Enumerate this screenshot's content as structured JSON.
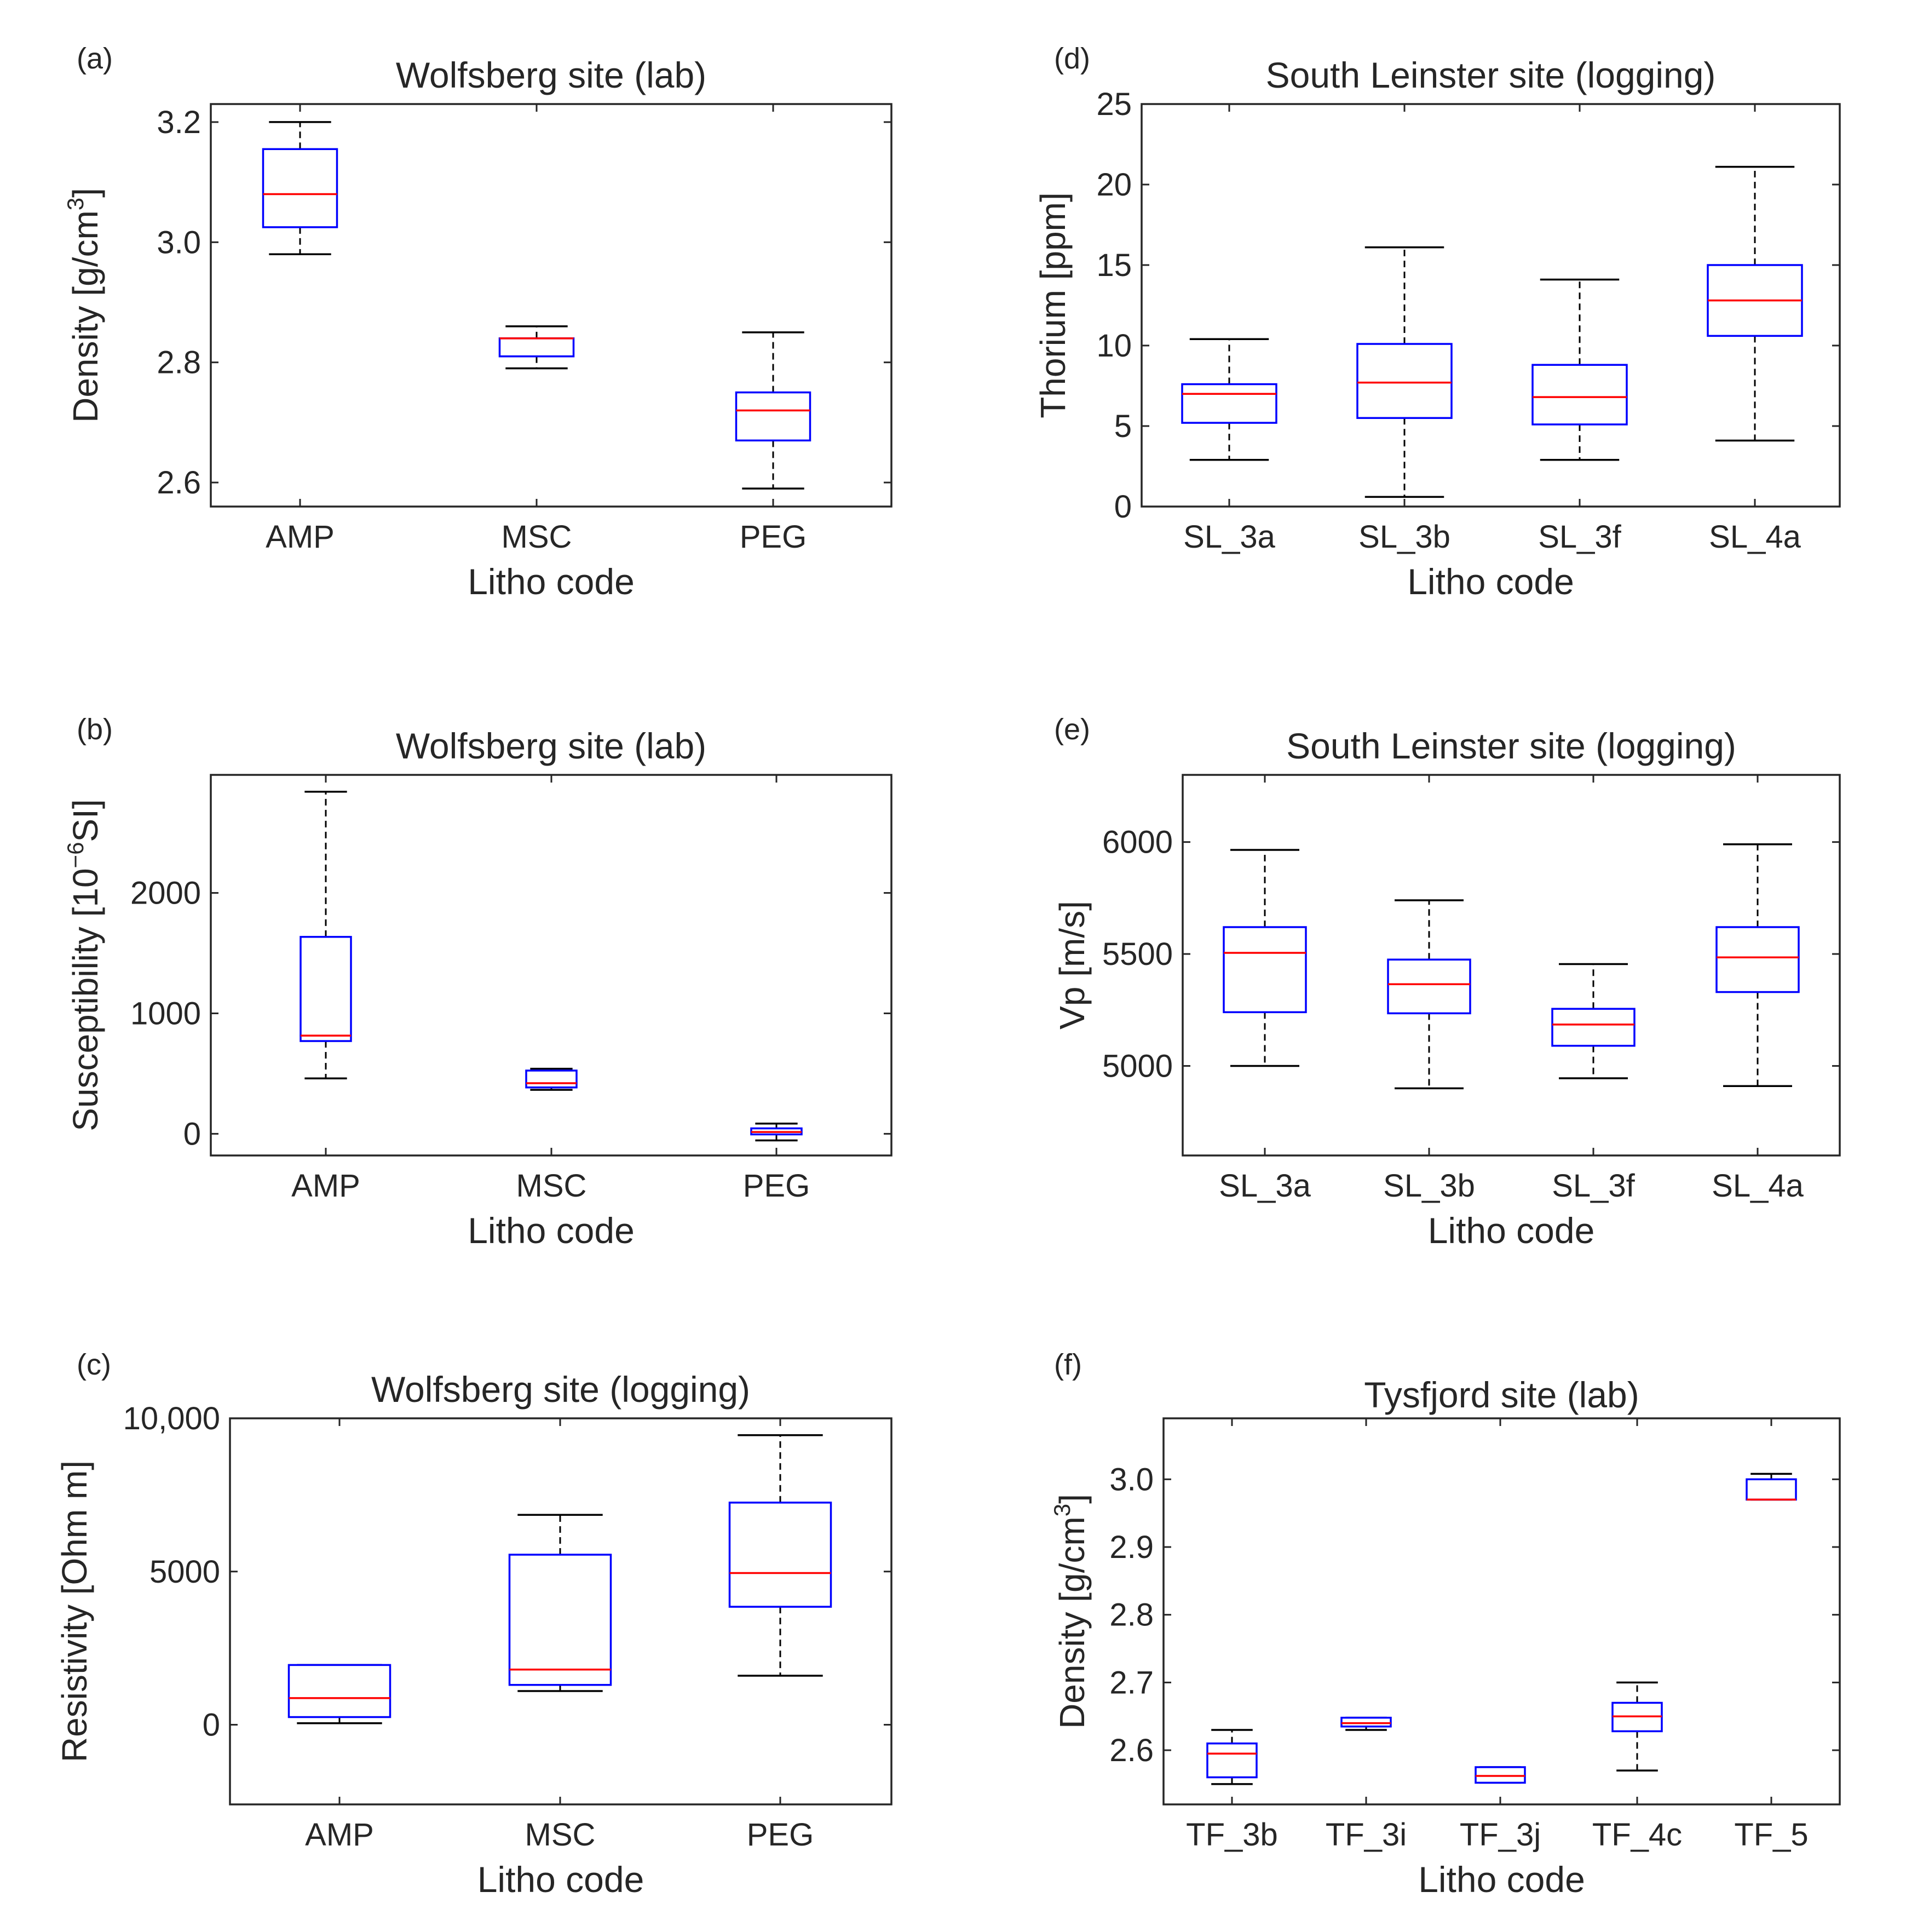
{
  "figure": {
    "description_panels": [
      "a",
      "b",
      "c",
      "d",
      "e",
      "f"
    ]
  },
  "chart_data": [
    {
      "id": "a",
      "panel_label": "(a)",
      "type": "box",
      "title": "Wolfsberg site (lab)",
      "xlabel": "Litho code",
      "ylabel": {
        "text": "Density [g/cm",
        "sup": "3",
        "end": "]"
      },
      "ylim": [
        2.56,
        3.23
      ],
      "yticks": [
        2.6,
        2.8,
        3.0,
        3.2
      ],
      "ytick_labels": [
        "2.6",
        "2.8",
        "3.0",
        "3.2"
      ],
      "categories": [
        "AMP",
        "MSC",
        "PEG"
      ],
      "boxes": [
        {
          "category": "AMP",
          "whisker_low": 2.98,
          "q1": 3.025,
          "median": 3.08,
          "q3": 3.155,
          "whisker_high": 3.2
        },
        {
          "category": "MSC",
          "whisker_low": 2.79,
          "q1": 2.81,
          "median": 2.84,
          "q3": 2.84,
          "whisker_high": 2.86
        },
        {
          "category": "PEG",
          "whisker_low": 2.59,
          "q1": 2.67,
          "median": 2.72,
          "q3": 2.75,
          "whisker_high": 2.85
        }
      ]
    },
    {
      "id": "b",
      "panel_label": "(b)",
      "type": "box",
      "title": "Wolfsberg site (lab)",
      "xlabel": "Litho code",
      "ylabel": {
        "text": "Susceptibility [10",
        "sup": "−6",
        "end": "SI]"
      },
      "ylim": [
        -180,
        2980
      ],
      "yticks": [
        0,
        1000,
        2000
      ],
      "ytick_labels": [
        "0",
        "1000",
        "2000"
      ],
      "categories": [
        "AMP",
        "MSC",
        "PEG"
      ],
      "boxes": [
        {
          "category": "AMP",
          "whisker_low": 460,
          "q1": 770,
          "median": 815,
          "q3": 1635,
          "whisker_high": 2840
        },
        {
          "category": "MSC",
          "whisker_low": 365,
          "q1": 385,
          "median": 420,
          "q3": 525,
          "whisker_high": 540
        },
        {
          "category": "PEG",
          "whisker_low": -55,
          "q1": -5,
          "median": 15,
          "q3": 45,
          "whisker_high": 85
        }
      ]
    },
    {
      "id": "c",
      "panel_label": "(c)",
      "type": "box",
      "title": "Wolfsberg site (logging)",
      "xlabel": "Litho code",
      "ylabel": {
        "text": "Resistivity [Ohm m]",
        "sup": "",
        "end": ""
      },
      "ylim": [
        -2600,
        10000
      ],
      "yticks": [
        0,
        5000,
        10000
      ],
      "ytick_labels": [
        "0",
        "5000",
        "10,000"
      ],
      "categories": [
        "AMP",
        "MSC",
        "PEG"
      ],
      "boxes": [
        {
          "category": "AMP",
          "whisker_low": 50,
          "q1": 250,
          "median": 870,
          "q3": 1950,
          "whisker_high": 1950
        },
        {
          "category": "MSC",
          "whisker_low": 1100,
          "q1": 1300,
          "median": 1800,
          "q3": 5550,
          "whisker_high": 6850
        },
        {
          "category": "PEG",
          "whisker_low": 1600,
          "q1": 3850,
          "median": 4950,
          "q3": 7250,
          "whisker_high": 9450
        }
      ]
    },
    {
      "id": "d",
      "panel_label": "(d)",
      "type": "box",
      "title": "South Leinster site (logging)",
      "xlabel": "Litho code",
      "ylabel": {
        "text": "Thorium [ppm]",
        "sup": "",
        "end": ""
      },
      "ylim": [
        0,
        25
      ],
      "yticks": [
        0,
        5,
        10,
        15,
        20,
        25
      ],
      "ytick_labels": [
        "0",
        "5",
        "10",
        "15",
        "20",
        "25"
      ],
      "categories": [
        "SL_3a",
        "SL_3b",
        "SL_3f",
        "SL_4a"
      ],
      "boxes": [
        {
          "category": "SL_3a",
          "whisker_low": 2.9,
          "q1": 5.2,
          "median": 7.0,
          "q3": 7.6,
          "whisker_high": 10.4
        },
        {
          "category": "SL_3b",
          "whisker_low": 0.6,
          "q1": 5.5,
          "median": 7.7,
          "q3": 10.1,
          "whisker_high": 16.1
        },
        {
          "category": "SL_3f",
          "whisker_low": 2.9,
          "q1": 5.1,
          "median": 6.8,
          "q3": 8.8,
          "whisker_high": 14.1
        },
        {
          "category": "SL_4a",
          "whisker_low": 4.1,
          "q1": 10.6,
          "median": 12.8,
          "q3": 15.0,
          "whisker_high": 21.1
        }
      ]
    },
    {
      "id": "e",
      "panel_label": "(e)",
      "type": "box",
      "title": "South Leinster site (logging)",
      "xlabel": "Litho code",
      "ylabel": {
        "text": "Vp [m/s]",
        "sup": "",
        "end": ""
      },
      "ylim": [
        4600,
        6300
      ],
      "yticks": [
        5000,
        5500,
        6000
      ],
      "ytick_labels": [
        "5000",
        "5500",
        "6000"
      ],
      "categories": [
        "SL_3a",
        "SL_3b",
        "SL_3f",
        "SL_4a"
      ],
      "boxes": [
        {
          "category": "SL_3a",
          "whisker_low": 5000,
          "q1": 5240,
          "median": 5505,
          "q3": 5620,
          "whisker_high": 5965
        },
        {
          "category": "SL_3b",
          "whisker_low": 4900,
          "q1": 5235,
          "median": 5365,
          "q3": 5475,
          "whisker_high": 5740
        },
        {
          "category": "SL_3f",
          "whisker_low": 4945,
          "q1": 5090,
          "median": 5185,
          "q3": 5255,
          "whisker_high": 5455
        },
        {
          "category": "SL_4a",
          "whisker_low": 4910,
          "q1": 5330,
          "median": 5485,
          "q3": 5620,
          "whisker_high": 5990
        }
      ]
    },
    {
      "id": "f",
      "panel_label": "(f)",
      "type": "box",
      "title": "Tysfjord site (lab)",
      "xlabel": "Litho code",
      "ylabel": {
        "text": "Density [g/cm",
        "sup": "3",
        "end": "]"
      },
      "ylim": [
        2.52,
        3.09
      ],
      "yticks": [
        2.6,
        2.7,
        2.8,
        2.9,
        3.0
      ],
      "ytick_labels": [
        "2.6",
        "2.7",
        "2.8",
        "2.9",
        "3.0"
      ],
      "categories": [
        "TF_3b",
        "TF_3i",
        "TF_3j",
        "TF_4c",
        "TF_5"
      ],
      "boxes": [
        {
          "category": "TF_3b",
          "whisker_low": 2.55,
          "q1": 2.56,
          "median": 2.595,
          "q3": 2.61,
          "whisker_high": 2.63
        },
        {
          "category": "TF_3i",
          "whisker_low": 2.63,
          "q1": 2.635,
          "median": 2.64,
          "q3": 2.648,
          "whisker_high": 2.648
        },
        {
          "category": "TF_3j",
          "whisker_low": 2.552,
          "q1": 2.552,
          "median": 2.562,
          "q3": 2.575,
          "whisker_high": 2.575
        },
        {
          "category": "TF_4c",
          "whisker_low": 2.57,
          "q1": 2.628,
          "median": 2.65,
          "q3": 2.67,
          "whisker_high": 2.7
        },
        {
          "category": "TF_5",
          "whisker_low": 2.97,
          "q1": 2.97,
          "median": 2.97,
          "q3": 3.0,
          "whisker_high": 3.008
        }
      ]
    }
  ]
}
